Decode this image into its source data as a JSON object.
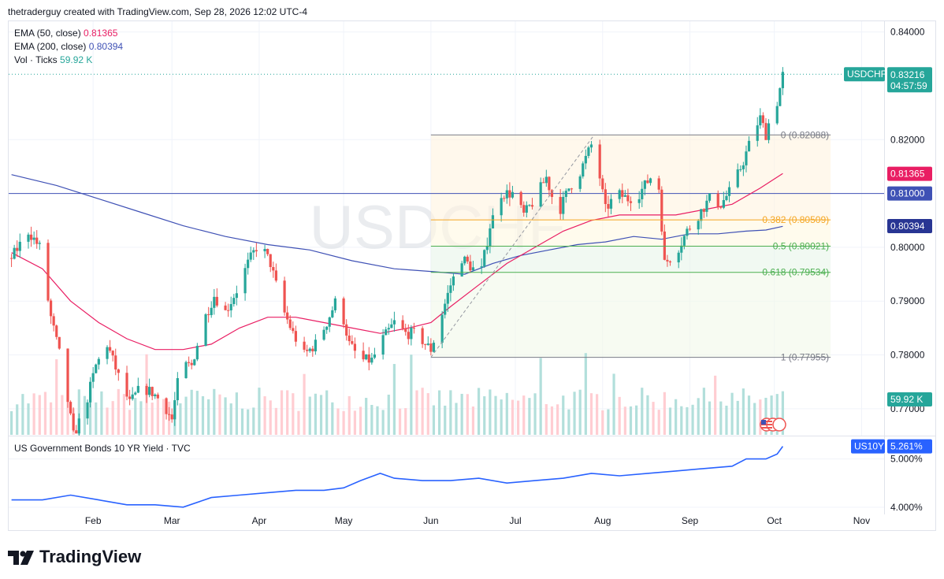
{
  "header": {
    "credit": "thetraderguy created with TradingView.com, Sep 28, 2026 12:02 UTC-4"
  },
  "legend": {
    "ema50_label": "EMA (50, close)",
    "ema50_value": "0.81365",
    "ema200_label": "EMA (200, close)",
    "ema200_value": "0.80394",
    "vol_label": "Vol · Ticks",
    "vol_value": "59.92 K"
  },
  "watermark": "USDCHF",
  "symbol": {
    "name": "USDCHF",
    "price": "0.83216",
    "countdown": "04:57:59"
  },
  "price_labels": {
    "ema50": "0.81365",
    "level": "0.81000",
    "ema200": "0.80394",
    "volume": "59.92 K"
  },
  "fib_labels": [
    "0 (0.82088)",
    "0.382 (0.80509)",
    "0.5 (0.80021)",
    "0.618 (0.79534)",
    "1 (0.77955)"
  ],
  "lower_pane": {
    "title": "US Government Bonds 10 YR Yield · TVC",
    "symbol": "US10Y",
    "value": "5.261%"
  },
  "brand": "TradingView",
  "colors": {
    "up": "#26a69a",
    "down": "#ef5350",
    "ema50": "#e91e63",
    "ema200": "#3f51b5",
    "yield": "#2962ff",
    "fib_gold": "#f5a623",
    "fib_green": "#4caf50"
  },
  "chart_data": {
    "type": "candlestick",
    "symbol": "USDCHF",
    "ylim": [
      0.765,
      0.842
    ],
    "y_ticks": [
      "0.84000",
      "0.82000",
      "0.80000",
      "0.79000",
      "0.78000",
      "0.77000"
    ],
    "y_tick_values": [
      0.84,
      0.82,
      0.8,
      0.79,
      0.78,
      0.77
    ],
    "x_ticks": [
      "Feb",
      "Mar",
      "Apr",
      "May",
      "Jun",
      "Jul",
      "Aug",
      "Sep",
      "Oct",
      "Nov"
    ],
    "x_tick_days": [
      23,
      51,
      82,
      112,
      143,
      173,
      204,
      235,
      265,
      296
    ],
    "day_range": [
      -7,
      304
    ],
    "last_close": 0.83216,
    "horizontal_level": 0.81,
    "fibonacci": {
      "start_day": 143,
      "end_day": 201,
      "extend_to_day": 285,
      "levels": [
        {
          "ratio": 0,
          "price": 0.82088
        },
        {
          "ratio": 0.382,
          "price": 0.80509
        },
        {
          "ratio": 0.5,
          "price": 0.80021
        },
        {
          "ratio": 0.618,
          "price": 0.79534
        },
        {
          "ratio": 1,
          "price": 0.77955
        }
      ]
    },
    "price_path": [
      [
        -6,
        0.798
      ],
      [
        0,
        0.803
      ],
      [
        4,
        0.8
      ],
      [
        8,
        0.787
      ],
      [
        12,
        0.778
      ],
      [
        16,
        0.765
      ],
      [
        20,
        0.77
      ],
      [
        24,
        0.778
      ],
      [
        28,
        0.782
      ],
      [
        32,
        0.776
      ],
      [
        36,
        0.771
      ],
      [
        40,
        0.774
      ],
      [
        44,
        0.773
      ],
      [
        48,
        0.771
      ],
      [
        51,
        0.768
      ],
      [
        54,
        0.778
      ],
      [
        58,
        0.778
      ],
      [
        62,
        0.786
      ],
      [
        66,
        0.791
      ],
      [
        70,
        0.788
      ],
      [
        74,
        0.792
      ],
      [
        78,
        0.797
      ],
      [
        82,
        0.801
      ],
      [
        86,
        0.797
      ],
      [
        90,
        0.789
      ],
      [
        94,
        0.784
      ],
      [
        98,
        0.78
      ],
      [
        102,
        0.782
      ],
      [
        106,
        0.786
      ],
      [
        110,
        0.791
      ],
      [
        114,
        0.782
      ],
      [
        118,
        0.779
      ],
      [
        122,
        0.779
      ],
      [
        126,
        0.783
      ],
      [
        130,
        0.786
      ],
      [
        134,
        0.784
      ],
      [
        138,
        0.784
      ],
      [
        141,
        0.782
      ],
      [
        143,
        0.781
      ],
      [
        146,
        0.786
      ],
      [
        150,
        0.793
      ],
      [
        154,
        0.798
      ],
      [
        158,
        0.796
      ],
      [
        160,
        0.793
      ],
      [
        164,
        0.804
      ],
      [
        168,
        0.81
      ],
      [
        172,
        0.81
      ],
      [
        176,
        0.806
      ],
      [
        180,
        0.809
      ],
      [
        184,
        0.813
      ],
      [
        188,
        0.806
      ],
      [
        192,
        0.811
      ],
      [
        196,
        0.814
      ],
      [
        200,
        0.819
      ],
      [
        202,
        0.816
      ],
      [
        205,
        0.807
      ],
      [
        209,
        0.81
      ],
      [
        213,
        0.809
      ],
      [
        217,
        0.81
      ],
      [
        221,
        0.813
      ],
      [
        224,
        0.811
      ],
      [
        226,
        0.797
      ],
      [
        230,
        0.799
      ],
      [
        234,
        0.803
      ],
      [
        238,
        0.806
      ],
      [
        242,
        0.809
      ],
      [
        246,
        0.808
      ],
      [
        250,
        0.811
      ],
      [
        254,
        0.816
      ],
      [
        258,
        0.822
      ],
      [
        260,
        0.824
      ],
      [
        262,
        0.821
      ],
      [
        264,
        0.825
      ],
      [
        266,
        0.827
      ],
      [
        268,
        0.832
      ]
    ],
    "ema50_path": [
      [
        -6,
        0.799
      ],
      [
        5,
        0.796
      ],
      [
        15,
        0.79
      ],
      [
        25,
        0.786
      ],
      [
        35,
        0.783
      ],
      [
        45,
        0.781
      ],
      [
        55,
        0.781
      ],
      [
        65,
        0.782
      ],
      [
        75,
        0.785
      ],
      [
        85,
        0.787
      ],
      [
        95,
        0.787
      ],
      [
        105,
        0.786
      ],
      [
        115,
        0.785
      ],
      [
        125,
        0.784
      ],
      [
        135,
        0.785
      ],
      [
        143,
        0.786
      ],
      [
        150,
        0.789
      ],
      [
        160,
        0.793
      ],
      [
        170,
        0.797
      ],
      [
        180,
        0.8
      ],
      [
        190,
        0.803
      ],
      [
        200,
        0.805
      ],
      [
        210,
        0.806
      ],
      [
        220,
        0.806
      ],
      [
        230,
        0.806
      ],
      [
        240,
        0.807
      ],
      [
        250,
        0.808
      ],
      [
        260,
        0.811
      ],
      [
        268,
        0.8137
      ]
    ],
    "ema200_path": [
      [
        -6,
        0.8135
      ],
      [
        10,
        0.8115
      ],
      [
        25,
        0.809
      ],
      [
        40,
        0.8065
      ],
      [
        55,
        0.804
      ],
      [
        70,
        0.802
      ],
      [
        85,
        0.8005
      ],
      [
        100,
        0.7995
      ],
      [
        115,
        0.7975
      ],
      [
        130,
        0.796
      ],
      [
        143,
        0.7955
      ],
      [
        155,
        0.795
      ],
      [
        165,
        0.797
      ],
      [
        175,
        0.7985
      ],
      [
        185,
        0.7995
      ],
      [
        195,
        0.8005
      ],
      [
        205,
        0.801
      ],
      [
        215,
        0.802
      ],
      [
        225,
        0.8015
      ],
      [
        235,
        0.8025
      ],
      [
        245,
        0.8025
      ],
      [
        255,
        0.803
      ],
      [
        262,
        0.8032
      ],
      [
        268,
        0.8039
      ]
    ],
    "volume": {
      "ylim": [
        0,
        100
      ],
      "last_value_k": 59.92
    },
    "yield_series": {
      "name": "US10Y",
      "ylim": [
        3.85,
        5.45
      ],
      "y_ticks": [
        "5.000%",
        "4.000%"
      ],
      "y_tick_values": [
        5.0,
        4.0
      ],
      "path": [
        [
          -6,
          4.15
        ],
        [
          5,
          4.15
        ],
        [
          15,
          4.25
        ],
        [
          25,
          4.15
        ],
        [
          35,
          4.05
        ],
        [
          45,
          4.05
        ],
        [
          55,
          4.0
        ],
        [
          65,
          4.2
        ],
        [
          75,
          4.25
        ],
        [
          85,
          4.3
        ],
        [
          95,
          4.35
        ],
        [
          105,
          4.35
        ],
        [
          112,
          4.4
        ],
        [
          118,
          4.55
        ],
        [
          125,
          4.7
        ],
        [
          130,
          4.6
        ],
        [
          140,
          4.55
        ],
        [
          150,
          4.55
        ],
        [
          160,
          4.6
        ],
        [
          170,
          4.5
        ],
        [
          180,
          4.55
        ],
        [
          190,
          4.6
        ],
        [
          200,
          4.7
        ],
        [
          210,
          4.65
        ],
        [
          220,
          4.7
        ],
        [
          230,
          4.75
        ],
        [
          240,
          4.8
        ],
        [
          250,
          4.85
        ],
        [
          255,
          5.0
        ],
        [
          262,
          5.0
        ],
        [
          266,
          5.1
        ],
        [
          268,
          5.261
        ]
      ]
    }
  }
}
